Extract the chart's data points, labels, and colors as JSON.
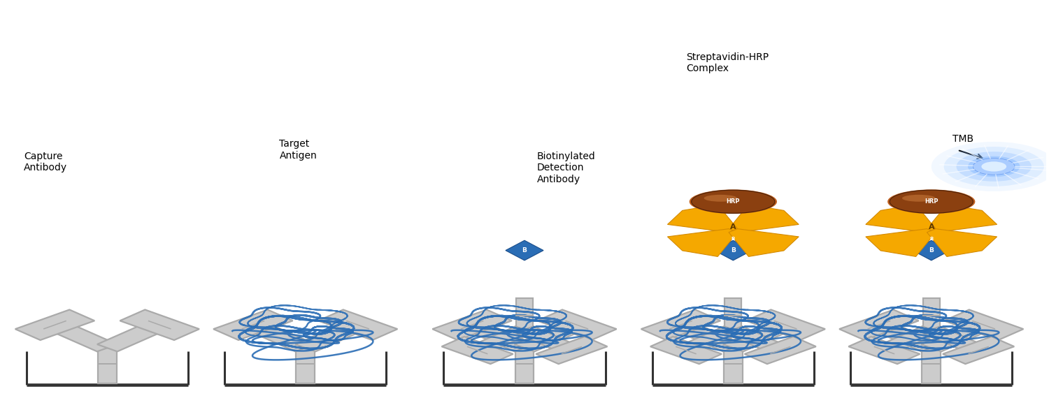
{
  "figsize": [
    15,
    6
  ],
  "dpi": 100,
  "bg_color": "#ffffff",
  "panels": [
    0.1,
    0.29,
    0.5,
    0.7,
    0.89
  ],
  "ab_gray": "#aaaaaa",
  "ab_fill": "#cccccc",
  "antigen_blue": "#2a6db5",
  "biotin_color": "#2a6db5",
  "orange_color": "#f5a800",
  "orange_dark": "#d48a00",
  "hrp_color": "#8b4010",
  "hrp_light": "#c06020",
  "tmb_blue": "#4488ff",
  "well_color": "#333333",
  "label_color": "#111111"
}
